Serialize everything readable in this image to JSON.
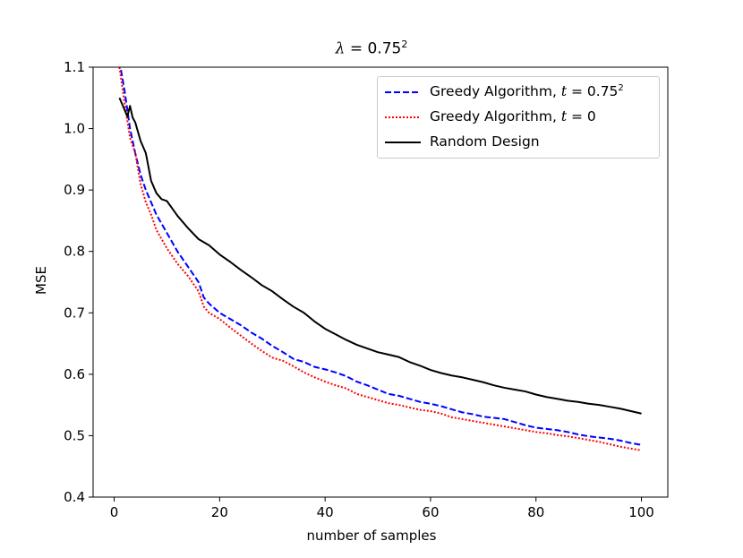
{
  "chart_data": {
    "type": "line",
    "title_symbol": "λ",
    "title_value": " = 0.75",
    "title_sup": "2",
    "xlabel": "number of samples",
    "ylabel": "MSE",
    "xlim": [
      -4,
      105
    ],
    "ylim": [
      0.4,
      1.1
    ],
    "xticks": [
      0,
      20,
      40,
      60,
      80,
      100
    ],
    "yticks": [
      0.4,
      0.5,
      0.6,
      0.7,
      0.8,
      0.9,
      1.0,
      1.1
    ],
    "ytick_labels": [
      "0.4",
      "0.5",
      "0.6",
      "0.7",
      "0.8",
      "0.9",
      "1.0",
      "1.1"
    ],
    "grid": false,
    "legend_position": "upper right",
    "series": [
      {
        "name": "Greedy Algorithm, t = 0.75²",
        "label_prefix": "Greedy Algorithm, ",
        "label_var": "t",
        "label_value": " = 0.75",
        "label_sup": "2",
        "color": "#0000ff",
        "style": "dashed",
        "x": [
          1,
          2,
          3,
          4,
          5,
          6,
          7,
          8,
          9,
          10,
          12,
          14,
          16,
          17,
          18,
          20,
          22,
          24,
          26,
          28,
          30,
          32,
          34,
          36,
          38,
          40,
          42,
          44,
          46,
          48,
          50,
          52,
          54,
          56,
          58,
          60,
          62,
          64,
          66,
          68,
          70,
          72,
          74,
          76,
          78,
          80,
          82,
          84,
          86,
          88,
          90,
          92,
          94,
          96,
          98,
          100
        ],
        "y": [
          1.11,
          1.06,
          1.0,
          0.96,
          0.925,
          0.9,
          0.88,
          0.86,
          0.845,
          0.83,
          0.8,
          0.775,
          0.75,
          0.725,
          0.715,
          0.7,
          0.69,
          0.68,
          0.668,
          0.658,
          0.646,
          0.636,
          0.625,
          0.62,
          0.612,
          0.608,
          0.603,
          0.597,
          0.588,
          0.582,
          0.575,
          0.568,
          0.565,
          0.56,
          0.555,
          0.552,
          0.548,
          0.543,
          0.538,
          0.535,
          0.531,
          0.529,
          0.527,
          0.522,
          0.517,
          0.513,
          0.511,
          0.509,
          0.506,
          0.502,
          0.499,
          0.497,
          0.495,
          0.492,
          0.488,
          0.485
        ]
      },
      {
        "name": "Greedy Algorithm, t = 0",
        "label_prefix": "Greedy Algorithm, ",
        "label_var": "t",
        "label_value": " = 0",
        "label_sup": "",
        "color": "#ff0000",
        "style": "dotted",
        "x": [
          1,
          2,
          3,
          4,
          5,
          6,
          7,
          8,
          9,
          10,
          12,
          14,
          16,
          17,
          18,
          20,
          22,
          24,
          26,
          28,
          30,
          32,
          34,
          36,
          38,
          40,
          42,
          44,
          46,
          48,
          50,
          52,
          54,
          56,
          58,
          60,
          62,
          64,
          66,
          68,
          70,
          72,
          74,
          76,
          78,
          80,
          82,
          84,
          86,
          88,
          90,
          92,
          94,
          96,
          98,
          100
        ],
        "y": [
          1.1,
          1.04,
          0.985,
          0.96,
          0.91,
          0.88,
          0.86,
          0.835,
          0.82,
          0.805,
          0.78,
          0.76,
          0.735,
          0.71,
          0.7,
          0.69,
          0.676,
          0.663,
          0.65,
          0.638,
          0.627,
          0.622,
          0.613,
          0.603,
          0.595,
          0.588,
          0.582,
          0.577,
          0.568,
          0.563,
          0.558,
          0.553,
          0.55,
          0.546,
          0.542,
          0.54,
          0.536,
          0.53,
          0.527,
          0.524,
          0.521,
          0.518,
          0.515,
          0.512,
          0.509,
          0.506,
          0.504,
          0.501,
          0.499,
          0.496,
          0.493,
          0.49,
          0.486,
          0.482,
          0.479,
          0.476
        ]
      },
      {
        "name": "Random Design",
        "label_prefix": "Random Design",
        "label_var": "",
        "label_value": "",
        "label_sup": "",
        "color": "#000000",
        "style": "solid",
        "x": [
          1,
          2,
          2.5,
          3,
          3.5,
          4,
          5,
          6,
          7,
          8,
          9,
          10,
          11,
          12,
          14,
          16,
          18,
          20,
          22,
          24,
          26,
          28,
          30,
          32,
          34,
          36,
          38,
          40,
          42,
          44,
          46,
          48,
          50,
          52,
          54,
          56,
          58,
          60,
          62,
          64,
          66,
          68,
          70,
          72,
          74,
          76,
          78,
          80,
          82,
          84,
          86,
          88,
          90,
          92,
          94,
          96,
          98,
          100
        ],
        "y": [
          1.05,
          1.03,
          1.02,
          1.037,
          1.018,
          1.01,
          0.98,
          0.96,
          0.915,
          0.895,
          0.885,
          0.882,
          0.87,
          0.858,
          0.838,
          0.82,
          0.81,
          0.795,
          0.783,
          0.77,
          0.758,
          0.745,
          0.735,
          0.722,
          0.71,
          0.7,
          0.686,
          0.674,
          0.665,
          0.656,
          0.648,
          0.642,
          0.636,
          0.632,
          0.628,
          0.62,
          0.614,
          0.607,
          0.602,
          0.598,
          0.595,
          0.591,
          0.587,
          0.582,
          0.578,
          0.575,
          0.572,
          0.567,
          0.563,
          0.56,
          0.557,
          0.555,
          0.552,
          0.55,
          0.547,
          0.544,
          0.54,
          0.536
        ]
      }
    ]
  }
}
